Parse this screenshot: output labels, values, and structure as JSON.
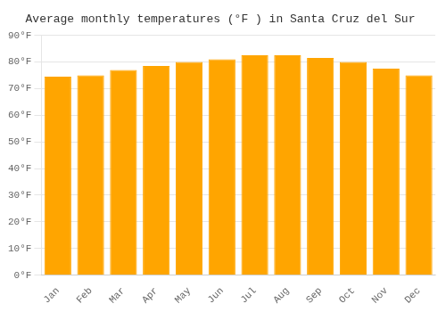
{
  "chart_data": {
    "type": "bar",
    "title": "Average monthly temperatures (°F ) in Santa Cruz del Sur",
    "categories": [
      "Jan",
      "Feb",
      "Mar",
      "Apr",
      "May",
      "Jun",
      "Jul",
      "Aug",
      "Sep",
      "Oct",
      "Nov",
      "Dec"
    ],
    "values": [
      74.5,
      75.0,
      77.0,
      78.5,
      80.0,
      81.0,
      82.5,
      82.5,
      81.5,
      80.0,
      77.5,
      75.0
    ],
    "color": "#FFA500",
    "ylim": [
      0,
      90
    ],
    "yticks": [
      {
        "value": 0,
        "label": "0°F"
      },
      {
        "value": 10,
        "label": "10°F"
      },
      {
        "value": 20,
        "label": "20°F"
      },
      {
        "value": 30,
        "label": "30°F"
      },
      {
        "value": 40,
        "label": "40°F"
      },
      {
        "value": 50,
        "label": "50°F"
      },
      {
        "value": 60,
        "label": "60°F"
      },
      {
        "value": 70,
        "label": "70°F"
      },
      {
        "value": 80,
        "label": "80°F"
      },
      {
        "value": 90,
        "label": "90°F"
      }
    ],
    "grid": true
  }
}
